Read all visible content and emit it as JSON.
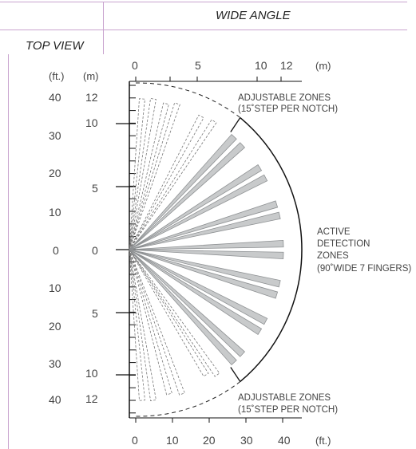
{
  "header": {
    "title": "WIDE ANGLE",
    "view": "TOP VIEW"
  },
  "scales": {
    "left_unit_ft": "(ft.)",
    "left_unit_m": "(m)",
    "top_unit": "(m)",
    "bottom_unit": "(ft.)",
    "ft_ticks": [
      "40",
      "30",
      "20",
      "10",
      "0",
      "10",
      "20",
      "30",
      "40"
    ],
    "m_ticks": [
      "12",
      "10",
      "5",
      "0",
      "5",
      "10",
      "12"
    ],
    "top_ticks": [
      "0",
      "5",
      "10",
      "12"
    ],
    "bottom_ticks": [
      "0",
      "10",
      "20",
      "30",
      "40"
    ]
  },
  "labels": {
    "adjustable_top": [
      "ADJUSTABLE ZONES",
      "(15˚STEP  PER  NOTCH)"
    ],
    "adjustable_bottom": [
      "ADJUSTABLE ZONES",
      "(15˚STEP  PER  NOTCH)"
    ],
    "active": [
      "ACTIVE",
      "DETECTION",
      "ZONES",
      "(90˚WIDE 7 FINGERS)"
    ]
  },
  "colors": {
    "finger_fill": "#c8cacb",
    "finger_stroke": "#8e9193",
    "axis": "#111111",
    "frame_lines": "#c9a4cf",
    "dashed": "#777777"
  }
}
